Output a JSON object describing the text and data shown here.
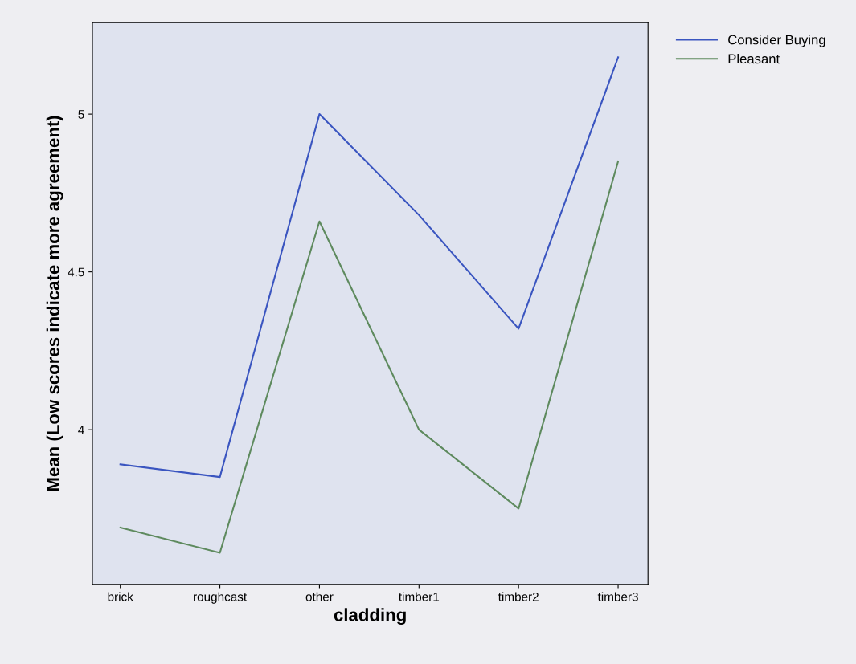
{
  "chart_data": {
    "type": "line",
    "xlabel": "cladding",
    "ylabel": "Mean (Low scores indicate more agreement)",
    "categories": [
      "brick",
      "roughcast",
      "other",
      "timber1",
      "timber2",
      "timber3"
    ],
    "series": [
      {
        "name": "Consider Buying",
        "color": "#3a55c0",
        "values": [
          3.89,
          3.85,
          5.0,
          4.68,
          4.32,
          5.18
        ]
      },
      {
        "name": "Pleasant",
        "color": "#5e8a5e",
        "values": [
          3.69,
          3.61,
          4.66,
          4.0,
          3.75,
          4.85
        ]
      }
    ],
    "ylim": [
      3.51,
      5.29
    ],
    "yticks": [
      4,
      {
        "value": 4.5,
        "label": "4.5"
      },
      5
    ],
    "grid": false,
    "legend": "top right",
    "marker": "none",
    "line_style": "solid"
  }
}
